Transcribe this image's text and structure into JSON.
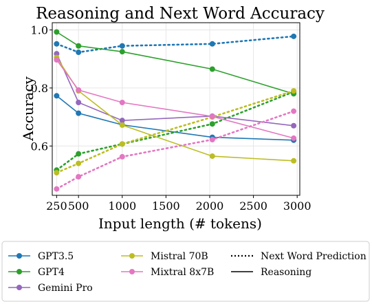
{
  "chart_data": {
    "type": "line",
    "title": "Reasoning and Next Word Accuracy",
    "xlabel": "Input length (# tokens)",
    "ylabel": "Accuracy",
    "xlim": [
      200,
      3030
    ],
    "ylim": [
      0.43,
      1.025
    ],
    "xticks": [
      250,
      500,
      1000,
      1500,
      2000,
      2500,
      3000
    ],
    "yticks": [
      0.6,
      0.8,
      1.0
    ],
    "ytick_labels": [
      "0.6",
      "0.8",
      "1.0"
    ],
    "grid": true,
    "legend_position": "bottom",
    "series": [
      {
        "name": "GPT3.5",
        "color": "#1f77b4",
        "reasoning": {
          "x": [
            250,
            500,
            1000,
            2030,
            2960
          ],
          "y": [
            0.773,
            0.713,
            0.673,
            0.63,
            0.62
          ]
        },
        "next_word": {
          "x": [
            250,
            500,
            1000,
            2030,
            2960
          ],
          "y": [
            0.952,
            0.923,
            0.945,
            0.952,
            0.978
          ]
        }
      },
      {
        "name": "GPT4",
        "color": "#2ca02c",
        "reasoning": {
          "x": [
            250,
            500,
            1000,
            2030,
            2960
          ],
          "y": [
            0.993,
            0.945,
            0.925,
            0.865,
            0.78
          ]
        },
        "next_word": {
          "x": [
            250,
            500,
            1000,
            2030,
            2960
          ],
          "y": [
            0.517,
            0.573,
            0.607,
            0.676,
            0.787
          ]
        }
      },
      {
        "name": "Gemini Pro",
        "color": "#9467bd",
        "reasoning": {
          "x": [
            250,
            500,
            1000,
            2030,
            2960
          ],
          "y": [
            0.918,
            0.75,
            0.688,
            0.703,
            0.67
          ]
        },
        "next_word": null
      },
      {
        "name": "Mistral 70B",
        "color": "#bcbd22",
        "reasoning": {
          "x": [
            250,
            500,
            1000,
            2030,
            2960
          ],
          "y": [
            0.905,
            0.79,
            0.672,
            0.565,
            0.549
          ]
        },
        "next_word": {
          "x": [
            250,
            500,
            1000,
            2030,
            2960
          ],
          "y": [
            0.508,
            0.54,
            0.607,
            0.7,
            0.79
          ]
        }
      },
      {
        "name": "Mixtral 8x7B",
        "color": "#e377c2",
        "reasoning": {
          "x": [
            250,
            500,
            1000,
            2030,
            2960
          ],
          "y": [
            0.897,
            0.793,
            0.75,
            0.702,
            0.627
          ]
        },
        "next_word": {
          "x": [
            250,
            500,
            1000,
            2030,
            2960
          ],
          "y": [
            0.452,
            0.494,
            0.563,
            0.622,
            0.72
          ]
        }
      }
    ],
    "line_styles": [
      {
        "name": "Next Word Prediction",
        "style": "dotted"
      },
      {
        "name": "Reasoning",
        "style": "solid"
      }
    ]
  }
}
